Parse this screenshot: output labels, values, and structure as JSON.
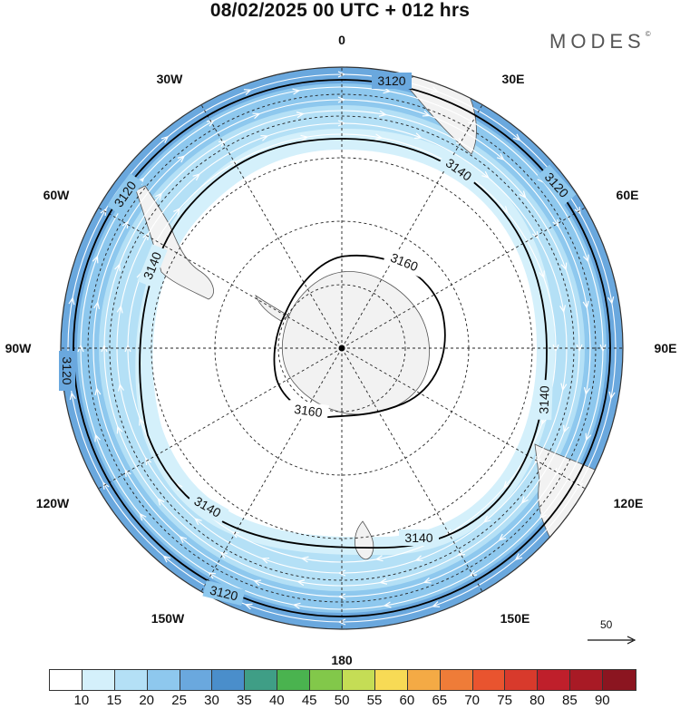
{
  "header": {
    "title": "08/02/2025  00 UTC  + 012 hrs",
    "brand": "MODES",
    "brand_mark": "©"
  },
  "map": {
    "projection": "south-polar-stereographic",
    "longitude_labels": [
      "0",
      "30E",
      "60E",
      "90E",
      "120E",
      "150E",
      "180",
      "150W",
      "120W",
      "90W",
      "60W",
      "30W"
    ],
    "contour_labels": [
      "3120",
      "3120",
      "3120",
      "3120",
      "3120",
      "3140",
      "3140",
      "3140",
      "3140",
      "3140",
      "3160",
      "3160"
    ],
    "wind_reference_value": "50",
    "colors": {
      "land": "#f2f2f2",
      "coast": "#555555",
      "contour": "#000000",
      "streamline": "#ffffff"
    }
  },
  "colorbar": {
    "ticks": [
      "10",
      "15",
      "20",
      "25",
      "30",
      "35",
      "40",
      "45",
      "50",
      "55",
      "60",
      "65",
      "70",
      "75",
      "80",
      "85",
      "90"
    ],
    "colors": [
      "#ffffff",
      "#d4f0fb",
      "#b4e0f6",
      "#8ec8ee",
      "#6aa8de",
      "#4a8ecb",
      "#3f9e86",
      "#4ab34f",
      "#82c84a",
      "#c5dd55",
      "#f7da55",
      "#f4aa45",
      "#ef7c38",
      "#e9542f",
      "#d83a2c",
      "#bf1f2b",
      "#a81a25",
      "#8b1520"
    ]
  }
}
